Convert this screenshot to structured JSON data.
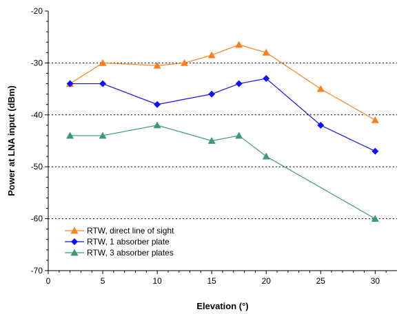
{
  "chart_data": {
    "type": "line",
    "xlabel": "Elevation (°)",
    "ylabel": "Power at LNA input (dBm)",
    "xlim": [
      0,
      32
    ],
    "ylim": [
      -70,
      -20
    ],
    "x_ticks": [
      0,
      5,
      10,
      15,
      20,
      25,
      30
    ],
    "y_ticks": [
      -70,
      -60,
      -50,
      -40,
      -30,
      -20
    ],
    "grid": "horizontal dotted",
    "legend_position": "bottom-left",
    "series": [
      {
        "name": "RTW, direct line of sight",
        "color": "#ff7f1e",
        "marker": "triangle",
        "x": [
          2,
          5,
          10,
          12.5,
          15,
          17.5,
          20,
          25,
          30
        ],
        "y": [
          -34,
          -30,
          -30.5,
          -30,
          -28.5,
          -26.5,
          -28,
          -35,
          -41
        ]
      },
      {
        "name": "RTW, 1 absorber plate",
        "color": "#1010ff",
        "marker": "diamond",
        "x": [
          2,
          5,
          10,
          15,
          17.5,
          20,
          25,
          30
        ],
        "y": [
          -34,
          -34,
          -38,
          -36,
          -34,
          -33,
          -42,
          -47
        ]
      },
      {
        "name": "RTW,  3 absorber plates",
        "color": "#3a9a72",
        "marker": "triangle",
        "x": [
          2,
          5,
          10,
          15,
          17.5,
          20,
          30
        ],
        "y": [
          -44,
          -44,
          -42,
          -45,
          -44,
          -48,
          -60
        ]
      }
    ]
  }
}
